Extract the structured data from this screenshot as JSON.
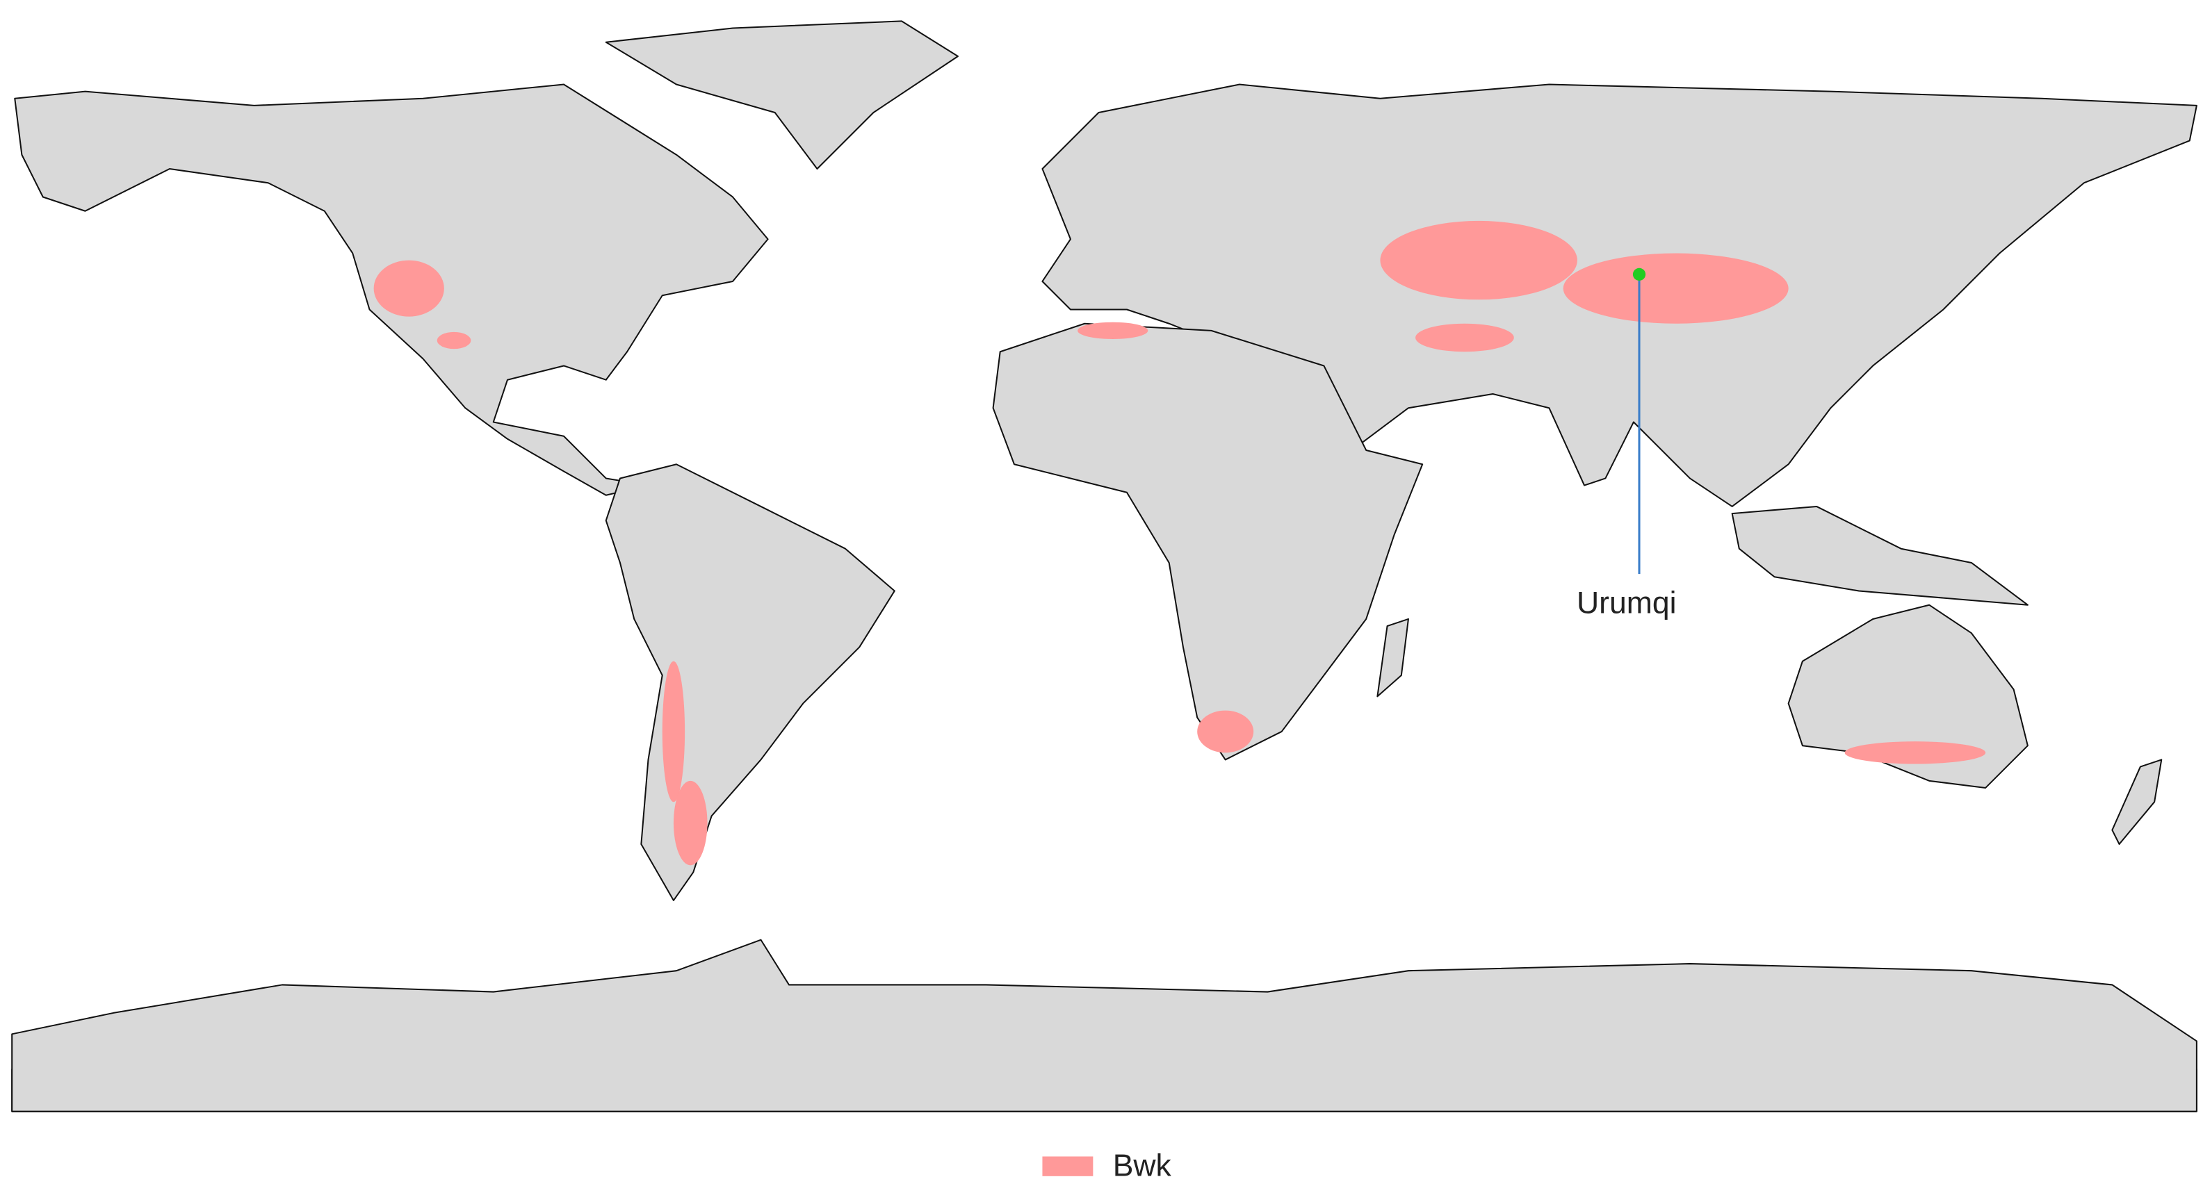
{
  "map": {
    "annotation": {
      "label": "Urumqi",
      "marker_color": "#22cc22",
      "line_color": "#3a7dc9"
    },
    "legend": [
      {
        "label": "Bwk",
        "color": "#ff9999"
      }
    ]
  }
}
